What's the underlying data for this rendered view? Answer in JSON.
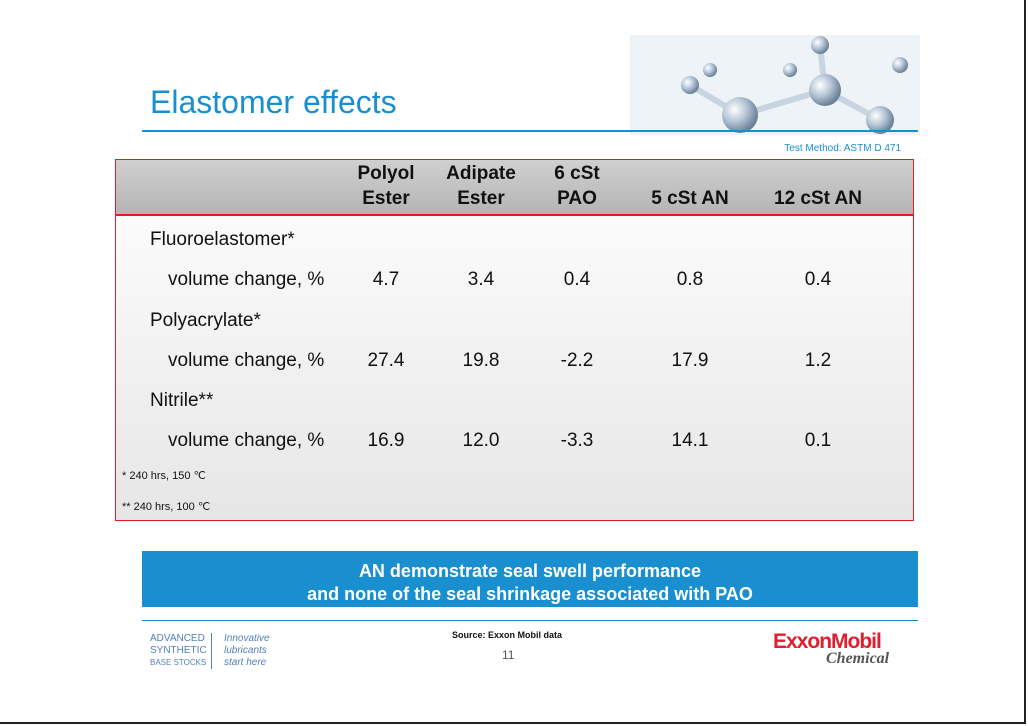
{
  "header": {
    "title": "Elastomer effects",
    "note": "Test Method: ASTM D 471"
  },
  "table": {
    "columns": [
      [
        "Polyol",
        "Ester"
      ],
      [
        "Adipate",
        "Ester"
      ],
      [
        "6 cSt",
        "PAO"
      ],
      [
        "5 cSt AN"
      ],
      [
        "12 cSt AN"
      ]
    ],
    "groups": [
      {
        "name": "Fluoroelastomer*",
        "label": "volume change, %",
        "values": [
          "4.7",
          "3.4",
          "0.4",
          "0.8",
          "0.4"
        ]
      },
      {
        "name": "Polyacrylate*",
        "label": "volume change, %",
        "values": [
          "27.4",
          "19.8",
          "-2.2",
          "17.9",
          "1.2"
        ]
      },
      {
        "name": "Nitrile**",
        "label": "volume change, %",
        "values": [
          "16.9",
          "12.0",
          "-3.3",
          "14.1",
          "0.1"
        ]
      }
    ],
    "footnotes": [
      "* 240 hrs, 150 ℃",
      "** 240 hrs, 100 ℃"
    ]
  },
  "banner": [
    "AN demonstrate seal swell performance",
    "and none of the seal shrinkage associated with PAO"
  ],
  "footer": {
    "source": "Source: Exxon Mobil data",
    "page": "11",
    "left_logo": [
      "ADVANCED",
      "SYNTHETIC",
      "BASE STOCKS"
    ],
    "tagline": [
      "Innovative",
      "lubricants",
      "start here"
    ],
    "brand": "ExxonMobil",
    "division": "Chemical"
  }
}
